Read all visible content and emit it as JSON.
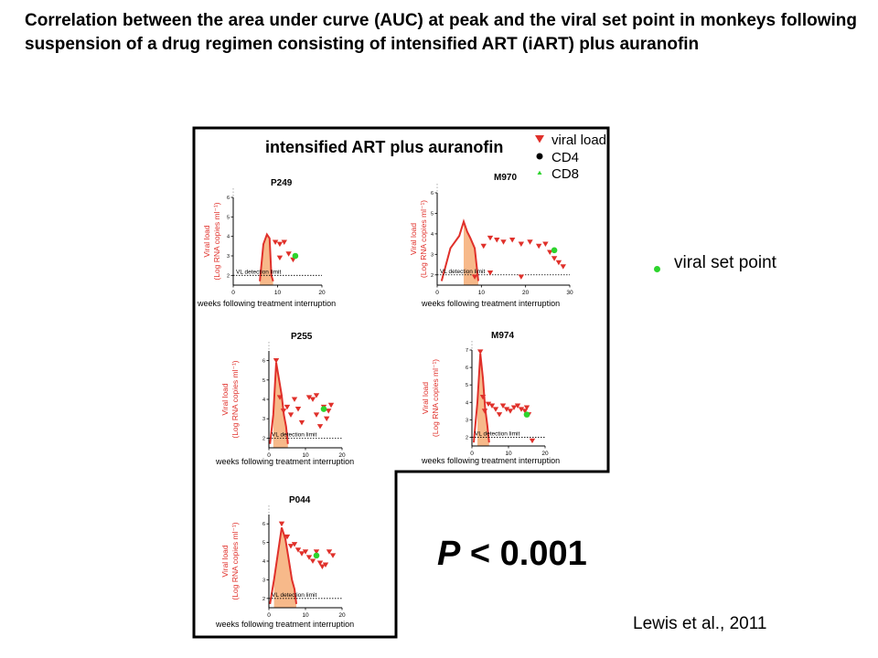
{
  "slide": {
    "title": "Correlation between the area under curve (AUC) at peak and the viral set point in monkeys following suspension of a drug regimen consisting of intensified ART (iART) plus auranofin",
    "side_legend_label": "viral set point",
    "pvalue_letter": "P",
    "pvalue_rest": " < 0.001",
    "citation": "Lewis et al., 2011"
  },
  "colors": {
    "viral_load": "#e0302a",
    "auc_fill": "#f7b98a",
    "set_point": "#2dd42d",
    "cd4": "#000000",
    "cd8": "#2dd42d"
  },
  "chart_data": {
    "type": "line",
    "title": "intensified ART plus auranofin",
    "legend": {
      "position": "top-right",
      "entries": [
        {
          "label": "viral load",
          "marker": "down-triangle",
          "color": "#e0302a"
        },
        {
          "label": "CD4",
          "marker": "hexagon",
          "color": "#000000"
        },
        {
          "label": "CD8",
          "marker": "up-triangle",
          "color": "#2dd42d"
        }
      ]
    },
    "detection_label": "VL detection limit",
    "panels": [
      {
        "name": "P249",
        "xlabel": "weeks following treatment interruption",
        "ylabel_line1": "Viral load",
        "ylabel_line2": "(Log RNA copies ml⁻¹)",
        "xlim": [
          0,
          20
        ],
        "ylim": [
          1.5,
          6
        ],
        "xticks": [
          0,
          10,
          20
        ],
        "yticks": [
          2,
          3,
          4,
          5,
          6
        ],
        "detection_limit": 2,
        "curve": [
          [
            6,
            1.7
          ],
          [
            6.8,
            3.6
          ],
          [
            7.6,
            4.1
          ],
          [
            8.2,
            3.9
          ],
          [
            8.6,
            2.0
          ],
          [
            9,
            1.7
          ]
        ],
        "auc_range": [
          6,
          9
        ],
        "viral_load_points": [
          [
            9.5,
            3.7
          ],
          [
            10.5,
            3.6
          ],
          [
            11.5,
            3.7
          ],
          [
            12.5,
            3.1
          ],
          [
            13.5,
            2.8
          ],
          [
            10.5,
            2.9
          ]
        ],
        "set_point": [
          14,
          3.0
        ]
      },
      {
        "name": "M970",
        "xlabel": "weeks following treatment interruption",
        "ylabel_line1": "Viral load",
        "ylabel_line2": "(Log RNA copies ml⁻¹)",
        "xlim": [
          0,
          30
        ],
        "ylim": [
          1.5,
          6
        ],
        "xticks": [
          0,
          10,
          20,
          30
        ],
        "yticks": [
          2,
          3,
          4,
          5,
          6
        ],
        "detection_limit": 2,
        "curve": [
          [
            1,
            1.7
          ],
          [
            3,
            3.3
          ],
          [
            5,
            3.9
          ],
          [
            6,
            4.6
          ],
          [
            6.8,
            4.1
          ],
          [
            7.5,
            3.8
          ],
          [
            8.5,
            3.3
          ],
          [
            9.3,
            1.7
          ]
        ],
        "auc_range": [
          5.5,
          9.3
        ],
        "viral_load_points": [
          [
            10.5,
            3.4
          ],
          [
            12,
            3.8
          ],
          [
            13.5,
            3.7
          ],
          [
            15,
            3.6
          ],
          [
            17,
            3.7
          ],
          [
            19,
            3.5
          ],
          [
            21,
            3.6
          ],
          [
            23,
            3.4
          ],
          [
            24.5,
            3.5
          ],
          [
            25.5,
            3.1
          ],
          [
            26.5,
            2.8
          ],
          [
            27.5,
            2.6
          ],
          [
            28.5,
            2.4
          ],
          [
            12,
            2.1
          ],
          [
            19,
            1.9
          ],
          [
            8.5,
            1.9
          ]
        ],
        "set_point": [
          26.5,
          3.2
        ]
      },
      {
        "name": "P255",
        "xlabel": "weeks following treatment interruption",
        "ylabel_line1": "Viral load",
        "ylabel_line2": "(Log RNA copies ml⁻¹)",
        "xlim": [
          0,
          20
        ],
        "ylim": [
          1.5,
          6.5
        ],
        "xticks": [
          0,
          10,
          20
        ],
        "yticks": [
          2,
          3,
          4,
          5,
          6
        ],
        "detection_limit": 2,
        "curve": [
          [
            0.3,
            1.7
          ],
          [
            1.2,
            3.2
          ],
          [
            2,
            5.9
          ],
          [
            2.8,
            5.0
          ],
          [
            3.5,
            4.2
          ],
          [
            4.1,
            3.2
          ],
          [
            4.7,
            2.6
          ],
          [
            5.2,
            1.7
          ]
        ],
        "auc_range": [
          1,
          5.2
        ],
        "viral_load_points": [
          [
            2,
            6.0
          ],
          [
            3,
            4.1
          ],
          [
            4,
            3.4
          ],
          [
            5,
            3.6
          ],
          [
            6,
            3.2
          ],
          [
            7,
            4.0
          ],
          [
            8,
            3.5
          ],
          [
            9,
            2.8
          ],
          [
            11,
            4.1
          ],
          [
            12,
            4.0
          ],
          [
            13,
            3.2
          ],
          [
            14,
            2.6
          ],
          [
            15,
            3.6
          ],
          [
            15.8,
            3.0
          ],
          [
            16.3,
            3.4
          ],
          [
            17,
            3.7
          ],
          [
            13,
            4.2
          ]
        ],
        "set_point": [
          15,
          3.5
        ]
      },
      {
        "name": "M974",
        "xlabel": "weeks following treatment interruption",
        "ylabel_line1": "Viral load",
        "ylabel_line2": "(Log RNA copies ml⁻¹)",
        "xlim": [
          0,
          20
        ],
        "ylim": [
          1.5,
          7
        ],
        "xticks": [
          0,
          10,
          20
        ],
        "yticks": [
          2,
          3,
          4,
          5,
          6,
          7
        ],
        "detection_limit": 2,
        "curve": [
          [
            0.5,
            1.7
          ],
          [
            1.5,
            4.0
          ],
          [
            2.3,
            6.8
          ],
          [
            3,
            5.4
          ],
          [
            3.6,
            3.7
          ],
          [
            4.2,
            2.7
          ],
          [
            4.7,
            1.7
          ]
        ],
        "auc_range": [
          1.5,
          4.7
        ],
        "viral_load_points": [
          [
            2.3,
            6.9
          ],
          [
            3,
            4.3
          ],
          [
            3.5,
            3.5
          ],
          [
            4.5,
            3.9
          ],
          [
            5.5,
            3.8
          ],
          [
            6.5,
            3.6
          ],
          [
            7.5,
            3.3
          ],
          [
            8.5,
            3.8
          ],
          [
            9.5,
            3.6
          ],
          [
            10.5,
            3.5
          ],
          [
            11.5,
            3.7
          ],
          [
            12.5,
            3.8
          ],
          [
            13.5,
            3.6
          ],
          [
            14.5,
            3.5
          ],
          [
            15.5,
            3.3
          ],
          [
            16.5,
            1.8
          ],
          [
            15,
            3.7
          ]
        ],
        "set_point": [
          15,
          3.3
        ]
      },
      {
        "name": "P044",
        "xlabel": "weeks following treatment interruption",
        "ylabel_line1": "Viral load",
        "ylabel_line2": "(Log RNA copies ml⁻¹)",
        "xlim": [
          0,
          20
        ],
        "ylim": [
          1.5,
          6.5
        ],
        "xticks": [
          0,
          10,
          20
        ],
        "yticks": [
          2,
          3,
          4,
          5,
          6
        ],
        "detection_limit": 2,
        "curve": [
          [
            0.3,
            1.7
          ],
          [
            1.4,
            3.0
          ],
          [
            2.6,
            4.6
          ],
          [
            3.5,
            5.8
          ],
          [
            4.5,
            5.2
          ],
          [
            5.5,
            4.0
          ],
          [
            6.3,
            3.0
          ],
          [
            7,
            2.5
          ],
          [
            7.5,
            1.7
          ]
        ],
        "auc_range": [
          1,
          7.5
        ],
        "viral_load_points": [
          [
            3.5,
            6.0
          ],
          [
            5,
            5.3
          ],
          [
            6,
            4.8
          ],
          [
            7,
            4.9
          ],
          [
            8,
            4.6
          ],
          [
            9,
            4.4
          ],
          [
            10,
            4.5
          ],
          [
            11,
            4.2
          ],
          [
            12,
            4.0
          ],
          [
            13,
            4.5
          ],
          [
            14,
            3.9
          ],
          [
            14.6,
            3.7
          ],
          [
            15.5,
            3.8
          ],
          [
            16.5,
            4.5
          ],
          [
            17.5,
            4.3
          ]
        ],
        "set_point": [
          13,
          4.3
        ]
      }
    ]
  }
}
